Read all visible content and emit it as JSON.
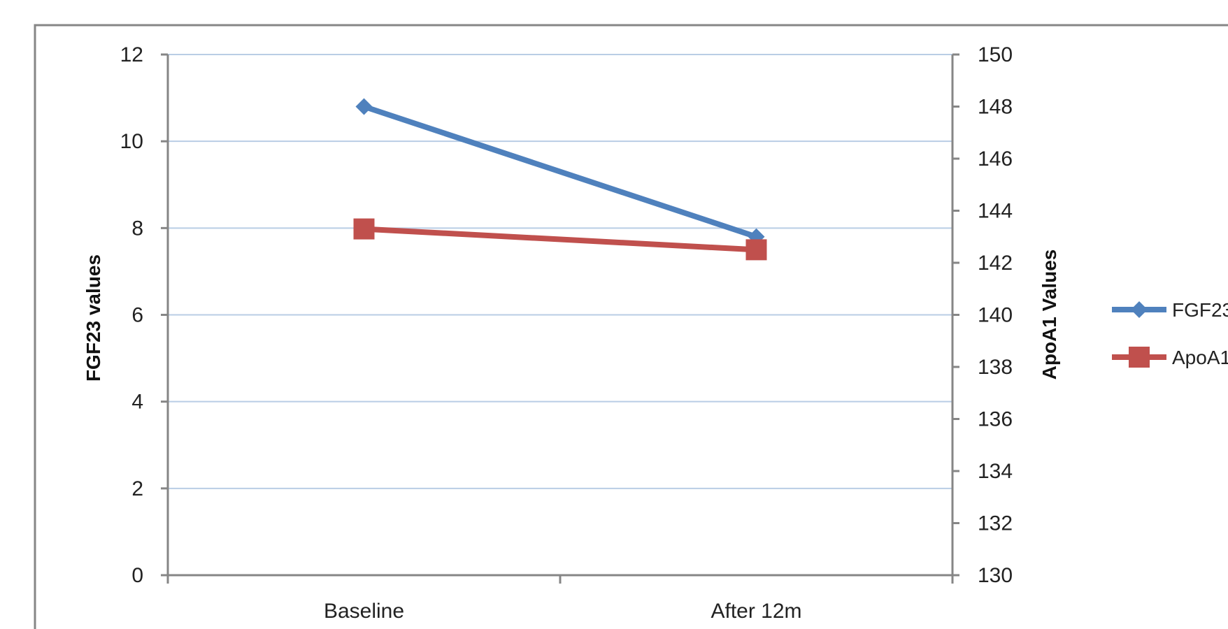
{
  "chart_data": {
    "type": "line",
    "categories": [
      "Baseline",
      "After 12m"
    ],
    "series": [
      {
        "name": "FGF23",
        "axis": "left",
        "values": [
          10.8,
          7.8
        ],
        "color": "#4f81bd",
        "marker": "diamond"
      },
      {
        "name": "ApoA1",
        "axis": "right",
        "values": [
          143.3,
          142.5
        ],
        "color": "#c0504d",
        "marker": "square"
      }
    ],
    "ylabel": "FGF23 values",
    "y2label": "ApoA1 Values",
    "ylim": [
      0,
      12
    ],
    "y_ticks": [
      0,
      2,
      4,
      6,
      8,
      10,
      12
    ],
    "y2lim": [
      130,
      150
    ],
    "y2_ticks": [
      130,
      132,
      134,
      136,
      138,
      140,
      142,
      144,
      146,
      148,
      150
    ],
    "grid": true,
    "legend_position": "right",
    "colors": {
      "grid": "#b9cde5",
      "axis": "#868686",
      "border": "#868686"
    }
  }
}
